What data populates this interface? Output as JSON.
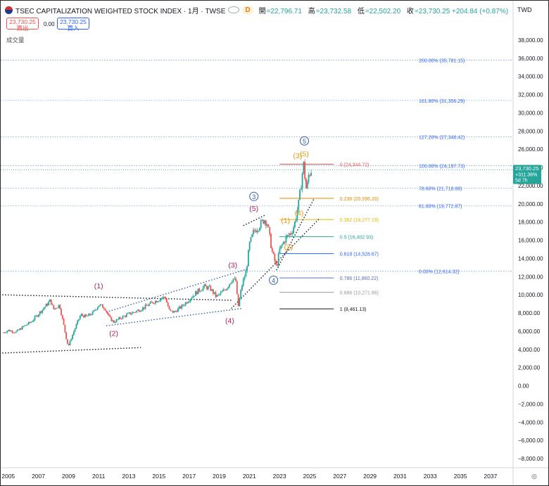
{
  "header": {
    "title": "TSEC CAPITALIZATION WEIGHTED STOCK INDEX · 1月 · TWSE",
    "badge": "D",
    "ohlc": [
      {
        "k": "開",
        "v": "=22,796.71"
      },
      {
        "k": "高",
        "v": "=23,732.58"
      },
      {
        "k": "低",
        "v": "=22,502.20"
      },
      {
        "k": "收",
        "v": "=23,730.25 +204.84 (+0.87%)"
      }
    ],
    "currency": "TWD"
  },
  "trade": {
    "sell_price": "23,730.25",
    "sell_label": "賣出",
    "spread": "0.00",
    "buy_price": "23,730.25",
    "buy_label": "買入"
  },
  "volume_label": "成交量",
  "price_tag": {
    "value": "23,730.25",
    "change": "+311.36%",
    "countdown": "5d 7h"
  },
  "colors": {
    "up": "#26a69a",
    "down": "#ef5350",
    "price_tag": "#26a69a",
    "wave_pink": "#b0245f",
    "wave_orange": "#e39b0e",
    "wave_blue": "#2f5fb3",
    "fib_left": "#2962ff"
  },
  "chart_data": {
    "type": "candlestick",
    "title": "TSEC CAPITALIZATION WEIGHTED STOCK INDEX · 1月 · TWSE",
    "x_range": [
      2004.5,
      2038.5
    ],
    "y_range": [
      -9000,
      40000
    ],
    "x_ticks": [
      "2005",
      "2007",
      "2009",
      "2011",
      "2013",
      "2015",
      "2017",
      "2019",
      "2021",
      "2023",
      "2025",
      "2027",
      "2029",
      "2031",
      "2033",
      "2035",
      "2037"
    ],
    "y_ticks": [
      38000,
      36000,
      34000,
      32000,
      30000,
      28000,
      26000,
      24000,
      22000,
      20000,
      18000,
      16000,
      14000,
      12000,
      10000,
      8000,
      6000,
      4000,
      2000,
      0,
      -2000,
      -4000,
      -6000,
      -8000
    ],
    "y_tick_labels": [
      "38,000.00",
      "36,000.00",
      "34,000.00",
      "32,000.00",
      "30,000.00",
      "28,000.00",
      "26,000.00",
      "24,000.00",
      "22,000.00",
      "20,000.00",
      "18,000.00",
      "16,000.00",
      "14,000.00",
      "12,000.00",
      "10,000.00",
      "8,000.00",
      "6,000.00",
      "4,000.00",
      "2,000.00",
      "0.00",
      "−2,000.00",
      "−4,000.00",
      "−6,000.00",
      "−8,000.00"
    ],
    "price_path": [
      [
        2004.6,
        5800
      ],
      [
        2005.0,
        6100
      ],
      [
        2005.5,
        5900
      ],
      [
        2006.0,
        6500
      ],
      [
        2006.5,
        7000
      ],
      [
        2007.0,
        7900
      ],
      [
        2007.5,
        8800
      ],
      [
        2007.8,
        9400
      ],
      [
        2008.0,
        8400
      ],
      [
        2008.4,
        8900
      ],
      [
        2008.7,
        6500
      ],
      [
        2008.9,
        4800
      ],
      [
        2009.0,
        4400
      ],
      [
        2009.4,
        6200
      ],
      [
        2009.8,
        7800
      ],
      [
        2010.2,
        7600
      ],
      [
        2010.6,
        8000
      ],
      [
        2011.0,
        8900
      ],
      [
        2011.4,
        8600
      ],
      [
        2011.7,
        7500
      ],
      [
        2012.0,
        7000
      ],
      [
        2012.5,
        7500
      ],
      [
        2013.0,
        7900
      ],
      [
        2013.5,
        8200
      ],
      [
        2014.0,
        8600
      ],
      [
        2014.5,
        9100
      ],
      [
        2015.0,
        9500
      ],
      [
        2015.4,
        9800
      ],
      [
        2015.7,
        8200
      ],
      [
        2016.0,
        8100
      ],
      [
        2016.5,
        8700
      ],
      [
        2017.0,
        9500
      ],
      [
        2017.5,
        10300
      ],
      [
        2018.0,
        10900
      ],
      [
        2018.4,
        10700
      ],
      [
        2018.8,
        9800
      ],
      [
        2019.0,
        10000
      ],
      [
        2019.5,
        10800
      ],
      [
        2019.9,
        11800
      ],
      [
        2020.1,
        11500
      ],
      [
        2020.25,
        8600
      ],
      [
        2020.5,
        11000
      ],
      [
        2020.8,
        12700
      ],
      [
        2021.0,
        15500
      ],
      [
        2021.3,
        17000
      ],
      [
        2021.6,
        17500
      ],
      [
        2022.0,
        18300
      ],
      [
        2022.2,
        17800
      ],
      [
        2022.5,
        14800
      ],
      [
        2022.8,
        13000
      ],
      [
        2023.0,
        14900
      ],
      [
        2023.4,
        16200
      ],
      [
        2023.8,
        16900
      ],
      [
        2024.0,
        17800
      ],
      [
        2024.3,
        20300
      ],
      [
        2024.5,
        23200
      ],
      [
        2024.6,
        24300
      ],
      [
        2024.8,
        21200
      ],
      [
        2024.9,
        23000
      ],
      [
        2025.1,
        23700
      ]
    ],
    "last_price": 23730.25,
    "fib_levels_left": [
      {
        "label": "200.00% (35,781.15)",
        "value": 35781.15
      },
      {
        "label": "161.80% (31,356.29)",
        "value": 31356.29
      },
      {
        "label": "127.20% (27,348.42)",
        "value": 27348.42
      },
      {
        "label": "100.00% (24,197.73)",
        "value": 24197.73
      },
      {
        "label": "78.60% (21,718.88)",
        "value": 21718.88
      },
      {
        "label": "61.80% (19,772.87)",
        "value": 19772.87
      },
      {
        "label": "0.00% (12,614.32)",
        "value": 12614.32
      }
    ],
    "fib_levels_right": [
      {
        "label": "0 (24,344.72)",
        "value": 24344.72,
        "color": "#ef5350"
      },
      {
        "label": "0.236 (20,596.20)",
        "value": 20596.2,
        "color": "#e68a00"
      },
      {
        "label": "0.382 (18,277.19)",
        "value": 18277.19,
        "color": "#e6b800"
      },
      {
        "label": "0.5 (16,402.93)",
        "value": 16402.93,
        "color": "#26a69a"
      },
      {
        "label": "0.618 (14,528.67)",
        "value": 14528.67,
        "color": "#2962ff"
      },
      {
        "label": "0.786 (11,860.22)",
        "value": 11860.22,
        "color": "#5c6bc0"
      },
      {
        "label": "0.886 (10,271.86)",
        "value": 10271.86,
        "color": "#999999"
      },
      {
        "label": "1 (8,461.13)",
        "value": 8461.13,
        "color": "#131722"
      }
    ],
    "wave_labels": [
      {
        "text": "(1)",
        "x": 2011.0,
        "y": 10700,
        "color": "#b0245f",
        "circle": false
      },
      {
        "text": "(2)",
        "x": 2012.0,
        "y": 5500,
        "color": "#b0245f",
        "circle": false
      },
      {
        "text": "(3)",
        "x": 2019.9,
        "y": 13000,
        "color": "#b0245f",
        "circle": false
      },
      {
        "text": "(4)",
        "x": 2019.7,
        "y": 6900,
        "color": "#b0245f",
        "circle": false
      },
      {
        "text": "(5)",
        "x": 2021.3,
        "y": 19200,
        "color": "#b0245f",
        "circle": false
      },
      {
        "text": "3",
        "x": 2021.3,
        "y": 20500,
        "color": "#2f5fb3",
        "circle": true
      },
      {
        "text": "4",
        "x": 2022.6,
        "y": 11300,
        "color": "#2f5fb3",
        "circle": true
      },
      {
        "text": "(1)",
        "x": 2023.4,
        "y": 17900,
        "color": "#e39b0e",
        "circle": false
      },
      {
        "text": "(2)",
        "x": 2023.6,
        "y": 15000,
        "color": "#e39b0e",
        "circle": false
      },
      {
        "text": "(4)",
        "x": 2024.3,
        "y": 18700,
        "color": "#e39b0e",
        "circle": false
      },
      {
        "text": "(3)",
        "x": 2024.2,
        "y": 25000,
        "color": "#e39b0e",
        "circle": false
      },
      {
        "text": "(5)",
        "x": 2024.65,
        "y": 25200,
        "color": "#e39b0e",
        "circle": false
      },
      {
        "text": "5",
        "x": 2024.65,
        "y": 26600,
        "color": "#2f5fb3",
        "circle": true
      }
    ],
    "trendlines": [
      {
        "from": [
          2004.6,
          10000
        ],
        "to": [
          2019.8,
          9400
        ],
        "color": "#131722",
        "style": "dotted"
      },
      {
        "from": [
          2004.6,
          3600
        ],
        "to": [
          2013.8,
          4200
        ],
        "color": "#131722",
        "style": "dotted"
      },
      {
        "from": [
          2011.5,
          8100
        ],
        "to": [
          2020.8,
          12800
        ],
        "color": "#2f5fb3",
        "style": "dotted"
      },
      {
        "from": [
          2011.5,
          6600
        ],
        "to": [
          2020.5,
          8500
        ],
        "color": "#2f5fb3",
        "style": "dotted"
      },
      {
        "from": [
          2019.8,
          8500
        ],
        "to": [
          2025.6,
          18300
        ],
        "color": "#131722",
        "style": "dotted"
      },
      {
        "from": [
          2020.6,
          17600
        ],
        "to": [
          2022.1,
          18800
        ],
        "color": "#131722",
        "style": "dotted"
      },
      {
        "from": [
          2022.8,
          12700
        ],
        "to": [
          2025.3,
          20600
        ],
        "color": "#131722",
        "style": "dotted"
      }
    ]
  }
}
